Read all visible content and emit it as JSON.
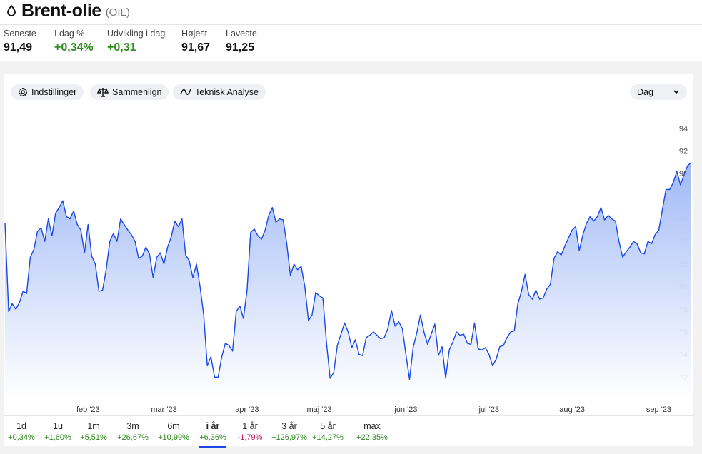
{
  "header": {
    "title": "Brent-olie",
    "ticker": "(OIL)"
  },
  "stats": [
    {
      "label": "Seneste",
      "value": "91,49",
      "color": "#111111"
    },
    {
      "label": "I dag %",
      "value": "+0,34%",
      "color": "#2e8b1e"
    },
    {
      "label": "Udvikling i dag",
      "value": "+0,31",
      "color": "#2e8b1e"
    },
    {
      "label": "Højest",
      "value": "91,67",
      "color": "#111111"
    },
    {
      "label": "Laveste",
      "value": "91,25",
      "color": "#111111"
    }
  ],
  "toolbar": {
    "buttons": [
      "Indstillinger",
      "Sammenlign",
      "Teknisk Analyse"
    ],
    "interval": "Dag"
  },
  "chart_data": {
    "type": "area",
    "color": "#1a47e6",
    "categories": [
      null,
      null,
      null,
      null,
      null,
      null,
      null,
      null,
      null,
      null,
      null,
      null,
      null,
      null,
      null,
      null,
      null,
      null,
      null,
      null,
      null,
      null,
      null,
      "feb '23",
      null,
      null,
      null,
      null,
      null,
      null,
      null,
      null,
      null,
      null,
      null,
      null,
      null,
      null,
      null,
      null,
      null,
      null,
      null,
      null,
      "mar '23",
      null,
      null,
      null,
      null,
      null,
      null,
      null,
      null,
      null,
      null,
      null,
      null,
      null,
      null,
      null,
      null,
      null,
      null,
      null,
      null,
      null,
      null,
      "apr '23",
      null,
      null,
      null,
      null,
      null,
      null,
      null,
      null,
      null,
      null,
      null,
      null,
      null,
      null,
      null,
      null,
      null,
      null,
      null,
      "maj '23",
      null,
      null,
      null,
      null,
      null,
      null,
      null,
      null,
      null,
      null,
      null,
      null,
      null,
      null,
      null,
      null,
      null,
      null,
      null,
      null,
      null,
      null,
      null,
      "jun '23",
      null,
      null,
      null,
      null,
      null,
      null,
      null,
      null,
      null,
      null,
      null,
      null,
      null,
      null,
      null,
      null,
      null,
      null,
      null,
      null,
      null,
      null,
      "jul '23",
      null,
      null,
      null,
      null,
      null,
      null,
      null,
      null,
      null,
      null,
      null,
      null,
      null,
      null,
      null,
      null,
      null,
      null,
      null,
      null,
      null,
      null,
      "aug '23",
      null,
      null,
      null,
      null,
      null,
      null,
      null,
      null,
      null,
      null,
      null,
      null,
      null,
      null,
      null,
      null,
      null,
      null,
      null,
      null,
      null,
      null,
      null,
      "sep '23",
      null,
      null,
      null,
      null,
      null,
      null,
      null,
      null,
      null
    ],
    "values": [
      85.6,
      77.8,
      78.5,
      78.0,
      78.6,
      79.6,
      79.4,
      82.6,
      83.3,
      84.9,
      85.2,
      84.0,
      86.0,
      84.5,
      86.5,
      87.0,
      87.6,
      86.2,
      86.0,
      86.7,
      85.5,
      85.0,
      83.0,
      85.5,
      82.7,
      82.0,
      79.6,
      79.7,
      81.5,
      84.0,
      84.7,
      84.0,
      86.0,
      85.5,
      85.0,
      84.6,
      84.0,
      82.5,
      82.7,
      83.5,
      82.9,
      80.8,
      82.6,
      83.0,
      82.0,
      83.5,
      84.4,
      85.8,
      85.3,
      86.0,
      82.8,
      82.3,
      80.8,
      82.0,
      80.0,
      77.5,
      73.0,
      73.8,
      72.0,
      72.0,
      73.8,
      75.0,
      74.8,
      74.3,
      77.8,
      78.3,
      77.2,
      79.7,
      84.8,
      85.1,
      84.5,
      84.2,
      85.0,
      86.3,
      87.0,
      85.7,
      86.0,
      85.9,
      83.8,
      81.0,
      82.0,
      81.5,
      81.8,
      80.0,
      77.0,
      77.5,
      79.5,
      79.2,
      79.0,
      75.0,
      71.9,
      72.4,
      74.8,
      75.8,
      76.8,
      76.0,
      74.6,
      75.3,
      74.0,
      73.9,
      75.5,
      75.7,
      76.0,
      75.7,
      75.4,
      75.5,
      76.3,
      77.9,
      76.5,
      76.9,
      76.3,
      74.0,
      71.8,
      74.6,
      75.9,
      77.5,
      76.0,
      74.9,
      75.8,
      76.7,
      73.9,
      74.7,
      71.9,
      74.4,
      75.1,
      76.0,
      75.7,
      75.8,
      75.0,
      74.9,
      76.8,
      74.5,
      74.4,
      74.6,
      74.0,
      73.0,
      73.6,
      74.7,
      74.8,
      75.5,
      76.0,
      76.1,
      78.5,
      79.6,
      81.1,
      79.3,
      78.9,
      79.7,
      78.9,
      79.0,
      79.8,
      80.2,
      82.5,
      83.1,
      82.8,
      83.6,
      84.3,
      85.0,
      85.3,
      83.2,
      84.6,
      85.6,
      86.2,
      85.8,
      86.2,
      87.0,
      85.9,
      86.3,
      86.0,
      85.8,
      84.0,
      82.6,
      83.1,
      83.5,
      84.0,
      83.8,
      83.0,
      82.9,
      84.0,
      83.8,
      84.6,
      85.0,
      86.8,
      88.6,
      88.6,
      89.2,
      90.2,
      89.0,
      89.9,
      90.7,
      91.0
    ],
    "ylim": [
      70,
      95
    ],
    "yticks": [
      72,
      74,
      76,
      78,
      80,
      82,
      84,
      86,
      88,
      90,
      92,
      94
    ]
  },
  "periods": [
    {
      "label": "1d",
      "change": "+0,34%",
      "color": "#2e8b1e"
    },
    {
      "label": "1u",
      "change": "+1,60%",
      "color": "#2e8b1e"
    },
    {
      "label": "1m",
      "change": "+5,51%",
      "color": "#2e8b1e"
    },
    {
      "label": "3m",
      "change": "+26,67%",
      "color": "#2e8b1e"
    },
    {
      "label": "6m",
      "change": "+10,99%",
      "color": "#2e8b1e"
    },
    {
      "label": "i år",
      "change": "+6,36%",
      "color": "#2e8b1e",
      "selected": true
    },
    {
      "label": "1 år",
      "change": "-1,79%",
      "color": "#c2185b"
    },
    {
      "label": "3 år",
      "change": "+126,97%",
      "color": "#2e8b1e"
    },
    {
      "label": "5 år",
      "change": "+14,27%",
      "color": "#2e8b1e"
    },
    {
      "label": "max",
      "change": "+22,35%",
      "color": "#2e8b1e"
    }
  ]
}
